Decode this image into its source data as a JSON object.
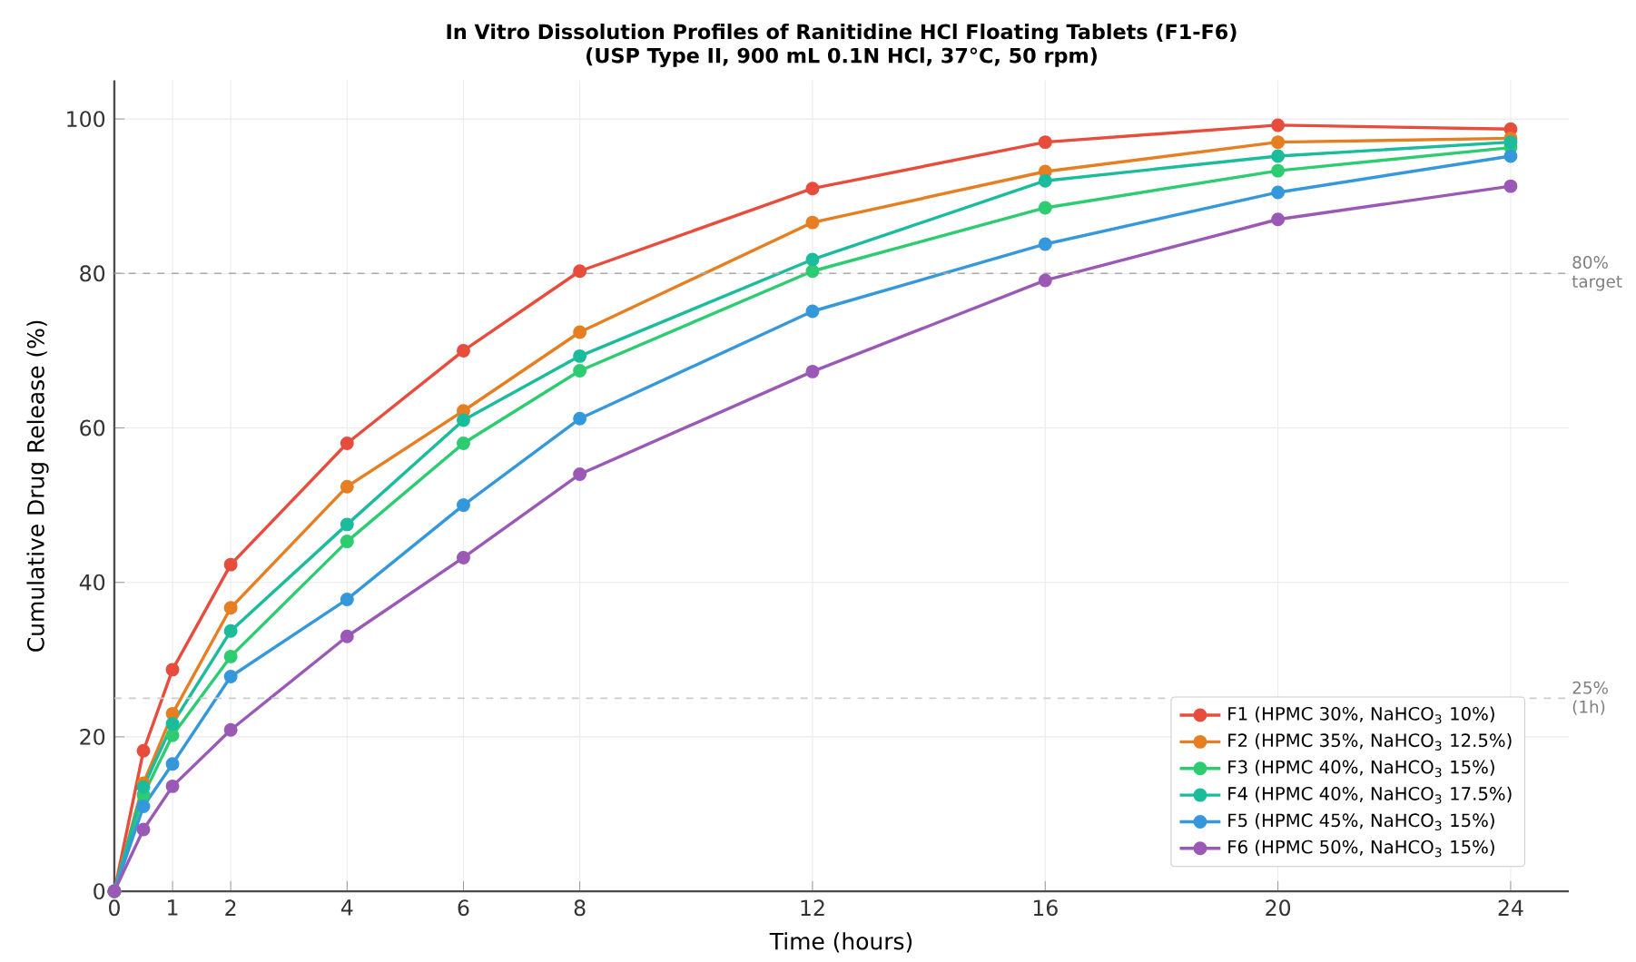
{
  "chart_data": {
    "type": "line",
    "title": "In Vitro Dissolution Profiles of Ranitidine HCl Floating Tablets (F1-F6)",
    "subtitle": "(USP Type II, 900 mL 0.1N HCl, 37°C, 50 rpm)",
    "xlabel": "Time (hours)",
    "ylabel": "Cumulative Drug Release (%)",
    "x": [
      0,
      0.5,
      1,
      2,
      4,
      6,
      8,
      12,
      16,
      20,
      24
    ],
    "series": [
      {
        "name": "F1 (HPMC 30%, NaHCO$_{3}$ 10%)",
        "color": "#e74c3c",
        "values": [
          0,
          18.2,
          28.7,
          42.3,
          58,
          70,
          80.3,
          91,
          97,
          99.2,
          98.7
        ]
      },
      {
        "name": "F2 (HPMC 35%, NaHCO$_{3}$ 12.5%)",
        "color": "#e67e22",
        "values": [
          0,
          14,
          23,
          36.7,
          52.4,
          62.2,
          72.4,
          86.6,
          93.2,
          97,
          97.5
        ]
      },
      {
        "name": "F3 (HPMC 40%, NaHCO$_{3}$ 15%)",
        "color": "#2ecc71",
        "values": [
          0,
          12.5,
          20.2,
          30.4,
          45.3,
          58,
          67.4,
          80.3,
          88.5,
          93.3,
          96.3
        ]
      },
      {
        "name": "F4 (HPMC 40%, NaHCO$_{3}$ 17.5%)",
        "color": "#1abc9c",
        "values": [
          0,
          13.5,
          21.7,
          33.7,
          47.5,
          61,
          69.3,
          81.8,
          92,
          95.2,
          97
        ]
      },
      {
        "name": "F5 (HPMC 45%, NaHCO$_{3}$ 15%)",
        "color": "#3498db",
        "values": [
          0,
          11,
          16.5,
          27.8,
          37.8,
          50,
          61.2,
          75.1,
          83.8,
          90.5,
          95.2
        ]
      },
      {
        "name": "F6 (HPMC 50%, NaHCO$_{3}$ 15%)",
        "color": "#9b59b6",
        "values": [
          0,
          8,
          13.6,
          20.9,
          33,
          43.2,
          54,
          67.3,
          79.1,
          87,
          91.3
        ]
      }
    ],
    "xlim": [
      0,
      25
    ],
    "xticks": [
      0,
      1,
      2,
      4,
      6,
      8,
      12,
      16,
      20,
      24
    ],
    "ylim": [
      0,
      105
    ],
    "yticks": [
      0,
      20,
      40,
      60,
      80,
      100
    ],
    "ref_lines": [
      {
        "axis": "y",
        "value": 80,
        "label": "80% target",
        "color": "#aaaaaa",
        "line_style": "dashed"
      },
      {
        "axis": "y",
        "value": 25,
        "label": "25% (1h)",
        "color": "#cccccc",
        "line_style": "dashed"
      }
    ],
    "grid": true,
    "legend": "bottom right",
    "marker": "circle",
    "line_style": "solid"
  }
}
